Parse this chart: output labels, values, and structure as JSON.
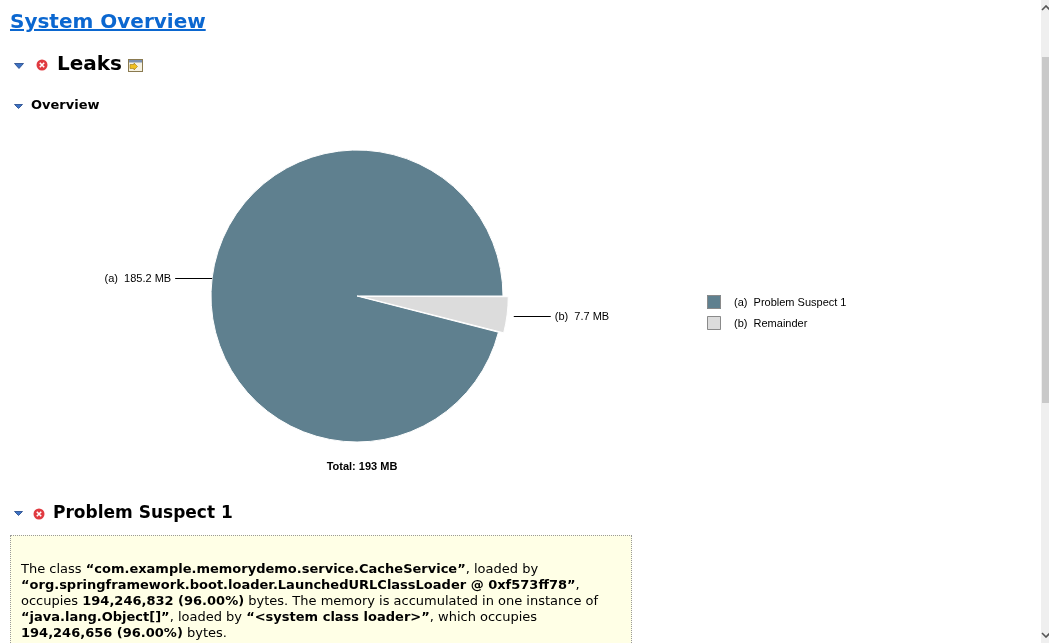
{
  "chart_data": {
    "type": "pie",
    "title": "System Overview",
    "subtitle": "Leaks",
    "categories": [
      "(a)  Problem Suspect 1",
      "(b)  Remainder"
    ],
    "values": [
      185.2,
      7.7
    ],
    "colors": [
      "#5f808f",
      "#dcdcdc"
    ],
    "value_labels": [
      "(a)  185.2 MB",
      "(b)  7.7 MB"
    ],
    "legend": "right",
    "annotations": [
      "Overview",
      "Total: 193 MB",
      "Problem Suspect 1",
      "The class “com.example.memorydemo.service.CacheService”, loaded by “org.springframework.boot.loader.LaunchedURLClassLoader @ 0xf573ff78”, occupies 194,246,832 (96.00%) bytes. The memory is accumulated in one instance of “java.lang.Object[]”, loaded by “<system class loader>”, which occupies 194,246,656 (96.00%) bytes."
    ]
  }
}
